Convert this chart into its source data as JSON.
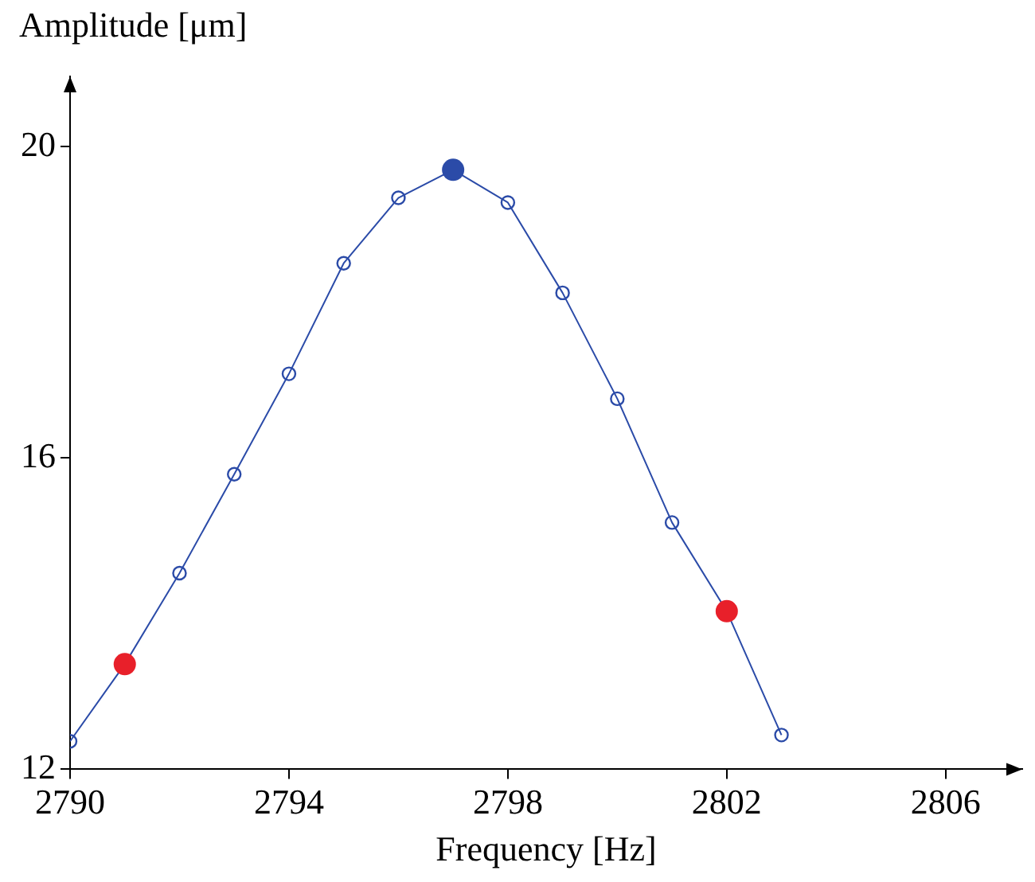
{
  "chart_data": {
    "type": "line",
    "xlabel": "Frequency [Hz]",
    "ylabel": "Amplitude [μm]",
    "xlim": [
      2790,
      2807.4
    ],
    "xticks": [
      2790,
      2794,
      2798,
      2802,
      2806
    ],
    "ylim": [
      12,
      20.9
    ],
    "yticks": [
      12,
      16,
      20
    ],
    "grid": false,
    "legend": false,
    "marker": "circle",
    "series": [
      {
        "type": "line",
        "color": "#2b4ba8",
        "x": [
          2790,
          2791,
          2792,
          2793,
          2794,
          2795,
          2796,
          2797,
          2798,
          2799,
          2800,
          2801,
          2802,
          2803
        ],
        "values": [
          12.36,
          13.35,
          14.52,
          15.79,
          17.08,
          18.5,
          19.34,
          19.7,
          19.28,
          18.12,
          16.76,
          15.17,
          14.03,
          12.44
        ]
      },
      {
        "type": "scatter",
        "color": "#e8202a",
        "x": [
          2791,
          2802
        ],
        "values": [
          13.35,
          14.03
        ]
      },
      {
        "type": "scatter",
        "color": "#2b4ba8",
        "x": [
          2797
        ],
        "values": [
          19.7
        ]
      }
    ]
  }
}
